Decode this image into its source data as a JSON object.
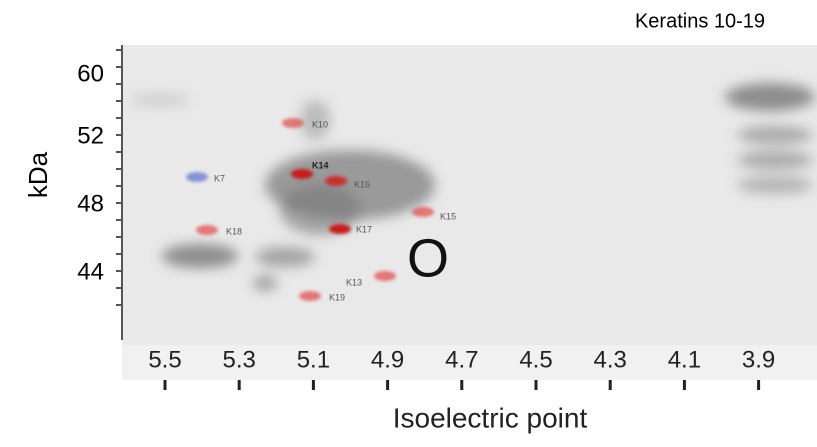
{
  "title": "Keratins 10-19",
  "y_axis": {
    "label": "kDa",
    "ticks": [
      "60",
      "52",
      "48",
      "44"
    ]
  },
  "x_axis": {
    "label": "Isoelectric point",
    "ticks": [
      "5.5",
      "5.3",
      "5.1",
      "4.9",
      "4.7",
      "4.5",
      "4.3",
      "4.1",
      "3.9"
    ]
  },
  "spots": [
    "K10",
    "K14",
    "K16",
    "K7",
    "K15",
    "K18",
    "K17",
    "K13",
    "K19"
  ],
  "marker": "O"
}
